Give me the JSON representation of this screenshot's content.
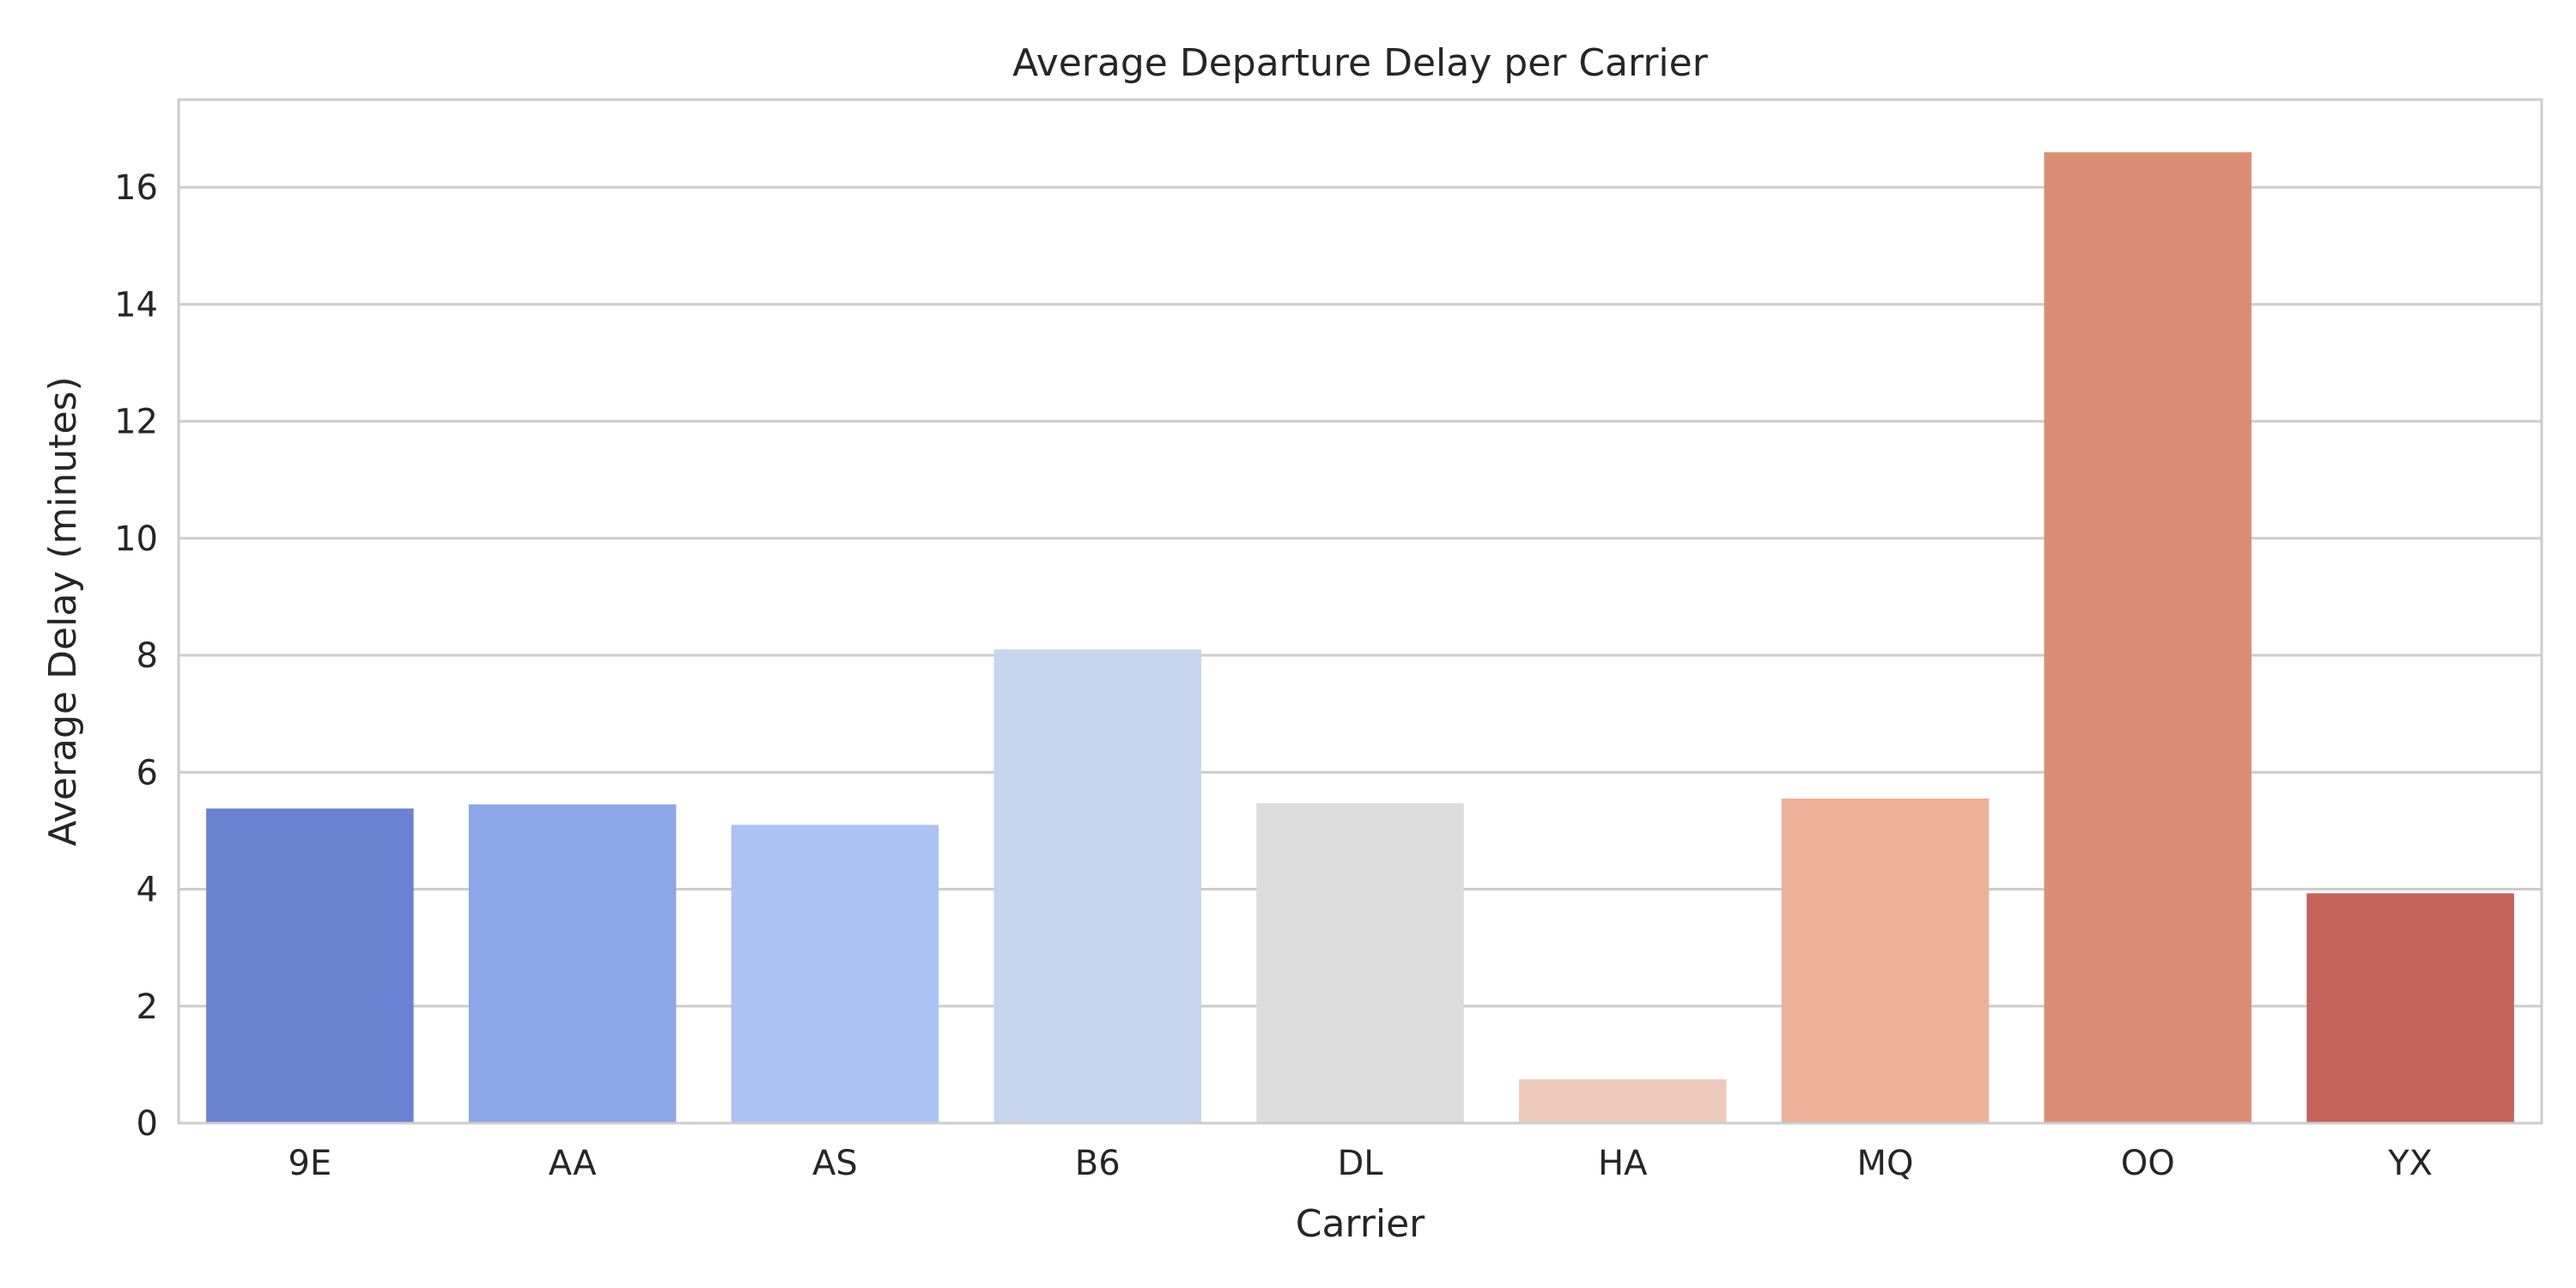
{
  "chart_data": {
    "type": "bar",
    "title": "Average Departure Delay per Carrier",
    "xlabel": "Carrier",
    "ylabel": "Average Delay (minutes)",
    "categories": [
      "9E",
      "AA",
      "AS",
      "B6",
      "DL",
      "HA",
      "MQ",
      "OO",
      "YX"
    ],
    "values": [
      5.38,
      5.45,
      5.1,
      8.1,
      5.47,
      0.75,
      5.55,
      16.6,
      3.93
    ],
    "ylim": [
      0,
      17.5
    ],
    "yticks": [
      0,
      2,
      4,
      6,
      8,
      10,
      12,
      14,
      16
    ],
    "colors": [
      "#6b82d3",
      "#8da6e8",
      "#abc2f2",
      "#c7d5ee",
      "#dcdcdc",
      "#eccbbd",
      "#ebb199",
      "#dc8d76",
      "#c4645a"
    ],
    "grid": true,
    "legend": "none"
  }
}
